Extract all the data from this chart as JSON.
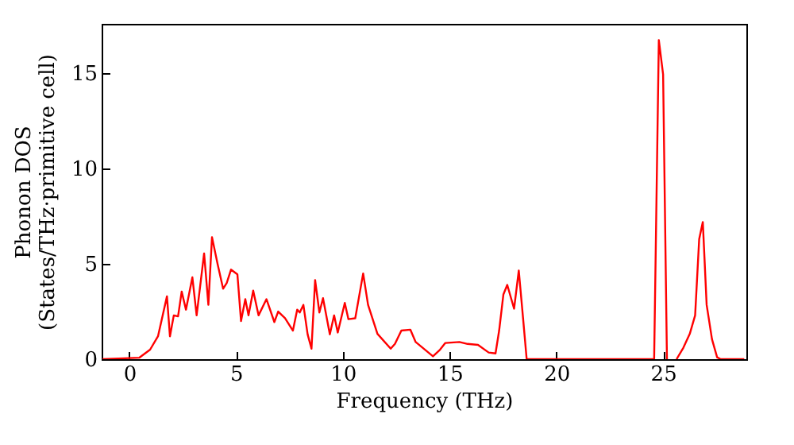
{
  "chart_data": {
    "type": "line",
    "xlabel": "Frequency (THz)",
    "ylabel": "Phonon DOS\n(States/THz·primitive cell)",
    "xlim": [
      -1.3,
      28.9
    ],
    "ylim": [
      0,
      17.6
    ],
    "xticks": [
      0,
      5,
      10,
      15,
      20,
      25
    ],
    "yticks": [
      0,
      5,
      10,
      15
    ],
    "grid": false,
    "series": [
      {
        "color": "#ff0000",
        "x": [
          -1.26,
          0.47,
          0.97,
          1.34,
          1.76,
          1.9,
          2.08,
          2.28,
          2.45,
          2.65,
          2.95,
          3.15,
          3.5,
          3.7,
          3.87,
          4.14,
          4.39,
          4.56,
          4.76,
          5.06,
          5.23,
          5.43,
          5.58,
          5.8,
          6.05,
          6.42,
          6.79,
          6.97,
          7.29,
          7.66,
          7.86,
          7.98,
          8.15,
          8.35,
          8.53,
          8.7,
          8.9,
          9.07,
          9.39,
          9.59,
          9.76,
          10.09,
          10.26,
          10.58,
          10.95,
          11.18,
          11.62,
          12.24,
          12.44,
          12.74,
          13.16,
          13.41,
          14.22,
          14.55,
          14.8,
          15.46,
          15.84,
          16.33,
          16.83,
          17.15,
          17.32,
          17.52,
          17.7,
          18.02,
          18.24,
          18.44,
          18.61,
          24.58,
          24.8,
          25.0,
          25.18,
          25.4,
          25.63,
          25.95,
          26.25,
          26.5,
          26.69,
          26.86,
          27.04,
          27.29,
          27.53,
          27.7,
          28.8
        ],
        "values": [
          0,
          0.08,
          0.5,
          1.2,
          3.3,
          1.2,
          2.3,
          2.25,
          3.55,
          2.6,
          4.3,
          2.3,
          5.55,
          2.85,
          6.4,
          4.95,
          3.7,
          4.0,
          4.7,
          4.45,
          2.0,
          3.15,
          2.3,
          3.6,
          2.3,
          3.15,
          1.95,
          2.5,
          2.15,
          1.5,
          2.6,
          2.45,
          2.85,
          1.3,
          0.55,
          4.15,
          2.45,
          3.2,
          1.3,
          2.3,
          1.4,
          2.95,
          2.1,
          2.15,
          4.5,
          2.85,
          1.33,
          0.55,
          0.8,
          1.5,
          1.55,
          0.9,
          0.15,
          0.5,
          0.85,
          0.9,
          0.8,
          0.75,
          0.35,
          0.3,
          1.5,
          3.4,
          3.9,
          2.65,
          4.65,
          2.15,
          0,
          0,
          16.75,
          14.95,
          0,
          null,
          0,
          0.6,
          1.33,
          2.3,
          6.3,
          7.2,
          2.85,
          1.05,
          0.1,
          0,
          0
        ]
      }
    ]
  }
}
